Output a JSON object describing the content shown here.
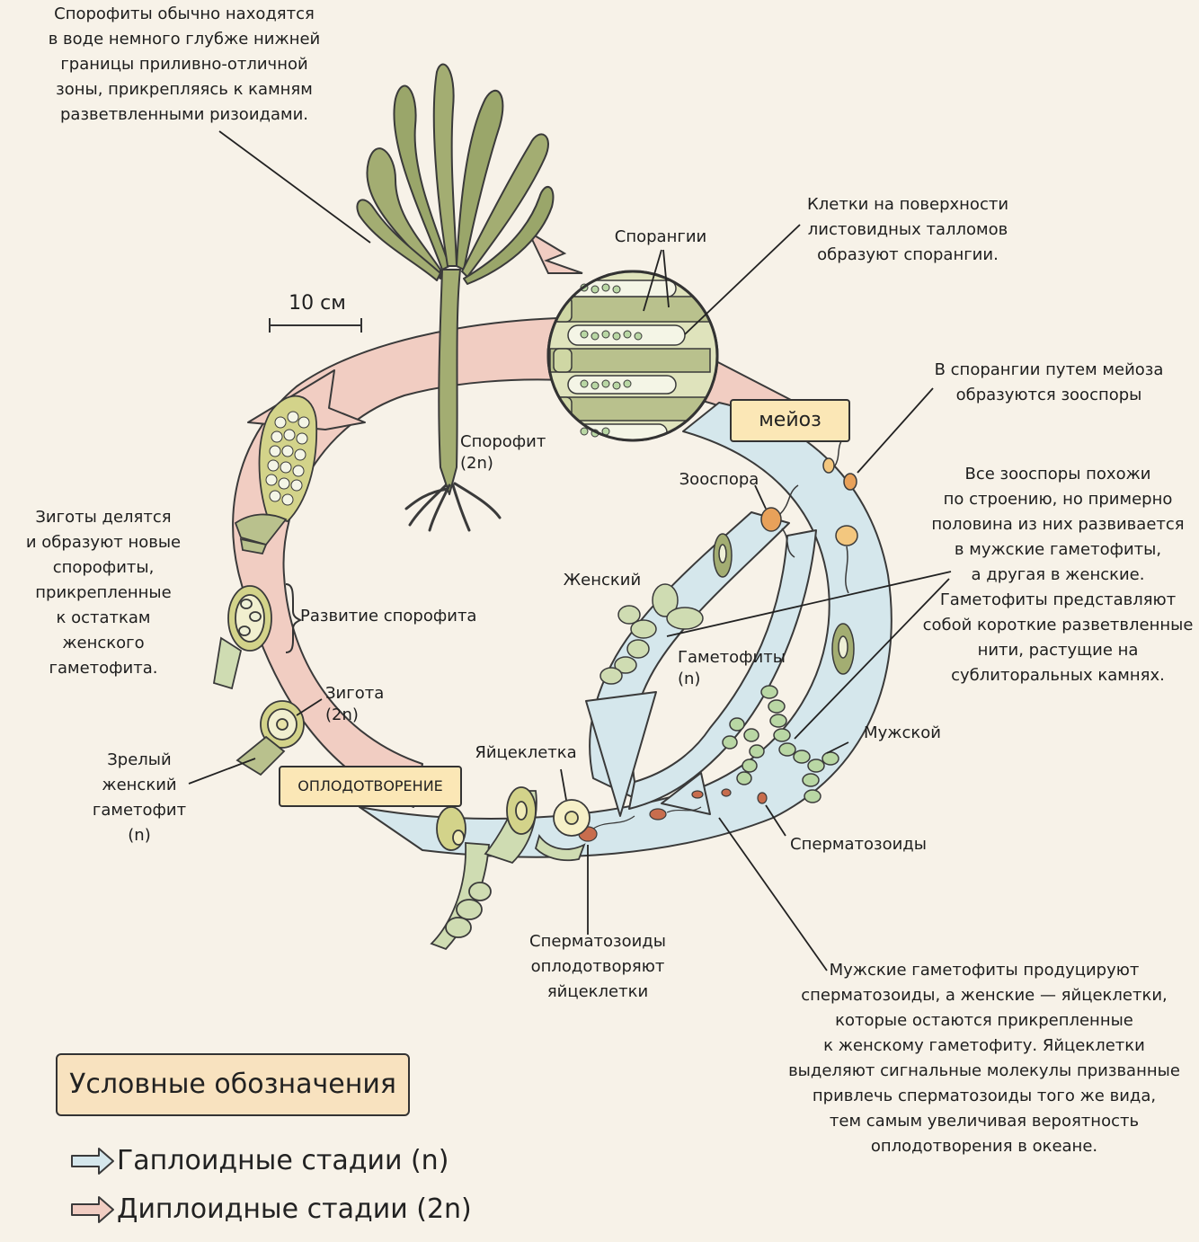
{
  "labels": {
    "sporophyte_habitat": "Спорофиты обычно находятся\nв воде немного глубже нижней\nграницы приливно-отличной\nзоны, прикрепляясь к камням\nразветвленными ризоидами.",
    "scale": "10 см",
    "sporophyte": "Спорофит\n(2n)",
    "sporangia": "Спорангии",
    "sporangia_cells": "Клетки на поверхности\nлистовидных талломов\nобразуют спорангии.",
    "meiosis": "мейоз",
    "zoospores_meiosis": "В спорангии путем мейоза\nобразуются зооспоры",
    "zoospore": "Зооспора",
    "zoospores_note": "Все зооспоры похожи\nпо строению, но примерно\nполовина из них развивается\nв мужские гаметофиты,\nа другая в женские.\nГаметофиты представляют\nсобой короткие разветвленные\nнити, растущие на\nсублиторальных камнях.",
    "female": "Женский",
    "gametophytes": "Гаметофиты\n(n)",
    "male": "Мужской",
    "sperm": "Сперматозоиды",
    "egg": "Яйцеклетка",
    "fertilization_tag": "ОПЛОДОТВОРЕНИЕ",
    "sperm_fertilize": "Сперматозоиды\nоплодотворяют\nяйцеклетки",
    "gametes_note": "Мужские гаметофиты продуцируют\nсперматозоиды, а женские — яйцеклетки,\nкоторые остаются прикрепленные\nк женскому гаметофиту. Яйцеклетки\nвыделяют сигнальные молекулы призванные\nпривлечь сперматозоиды того же вида,\nтем самым увеличивая вероятность\nоплодотворения в океане.",
    "zygotes_note": "Зиготы делятся\nи образуют новые\nспорофиты,\nприкрепленные\nк остаткам\nженского\nгаметофита.",
    "sporophyte_development": "Развитие спорофита",
    "zygote": "Зигота\n(2n)",
    "mature_female": "Зрелый\nженский\nгаметофит\n(n)"
  },
  "legend": {
    "title": "Условные обозначения",
    "haploid": "Гаплоидные стадии (n)",
    "diploid": "Диплоидные стадии (2n)",
    "haploid_color": "#d5e7ec",
    "diploid_color": "#f1cdc2"
  },
  "colors": {
    "background": "#f7f2e8",
    "haploid_arrow": "#d5e7ec",
    "diploid_arrow": "#f1cdc2",
    "algae_green": "#a3ad72",
    "tag_fill": "#fbe7b6",
    "zoospore_orange": "#e8a15a"
  }
}
